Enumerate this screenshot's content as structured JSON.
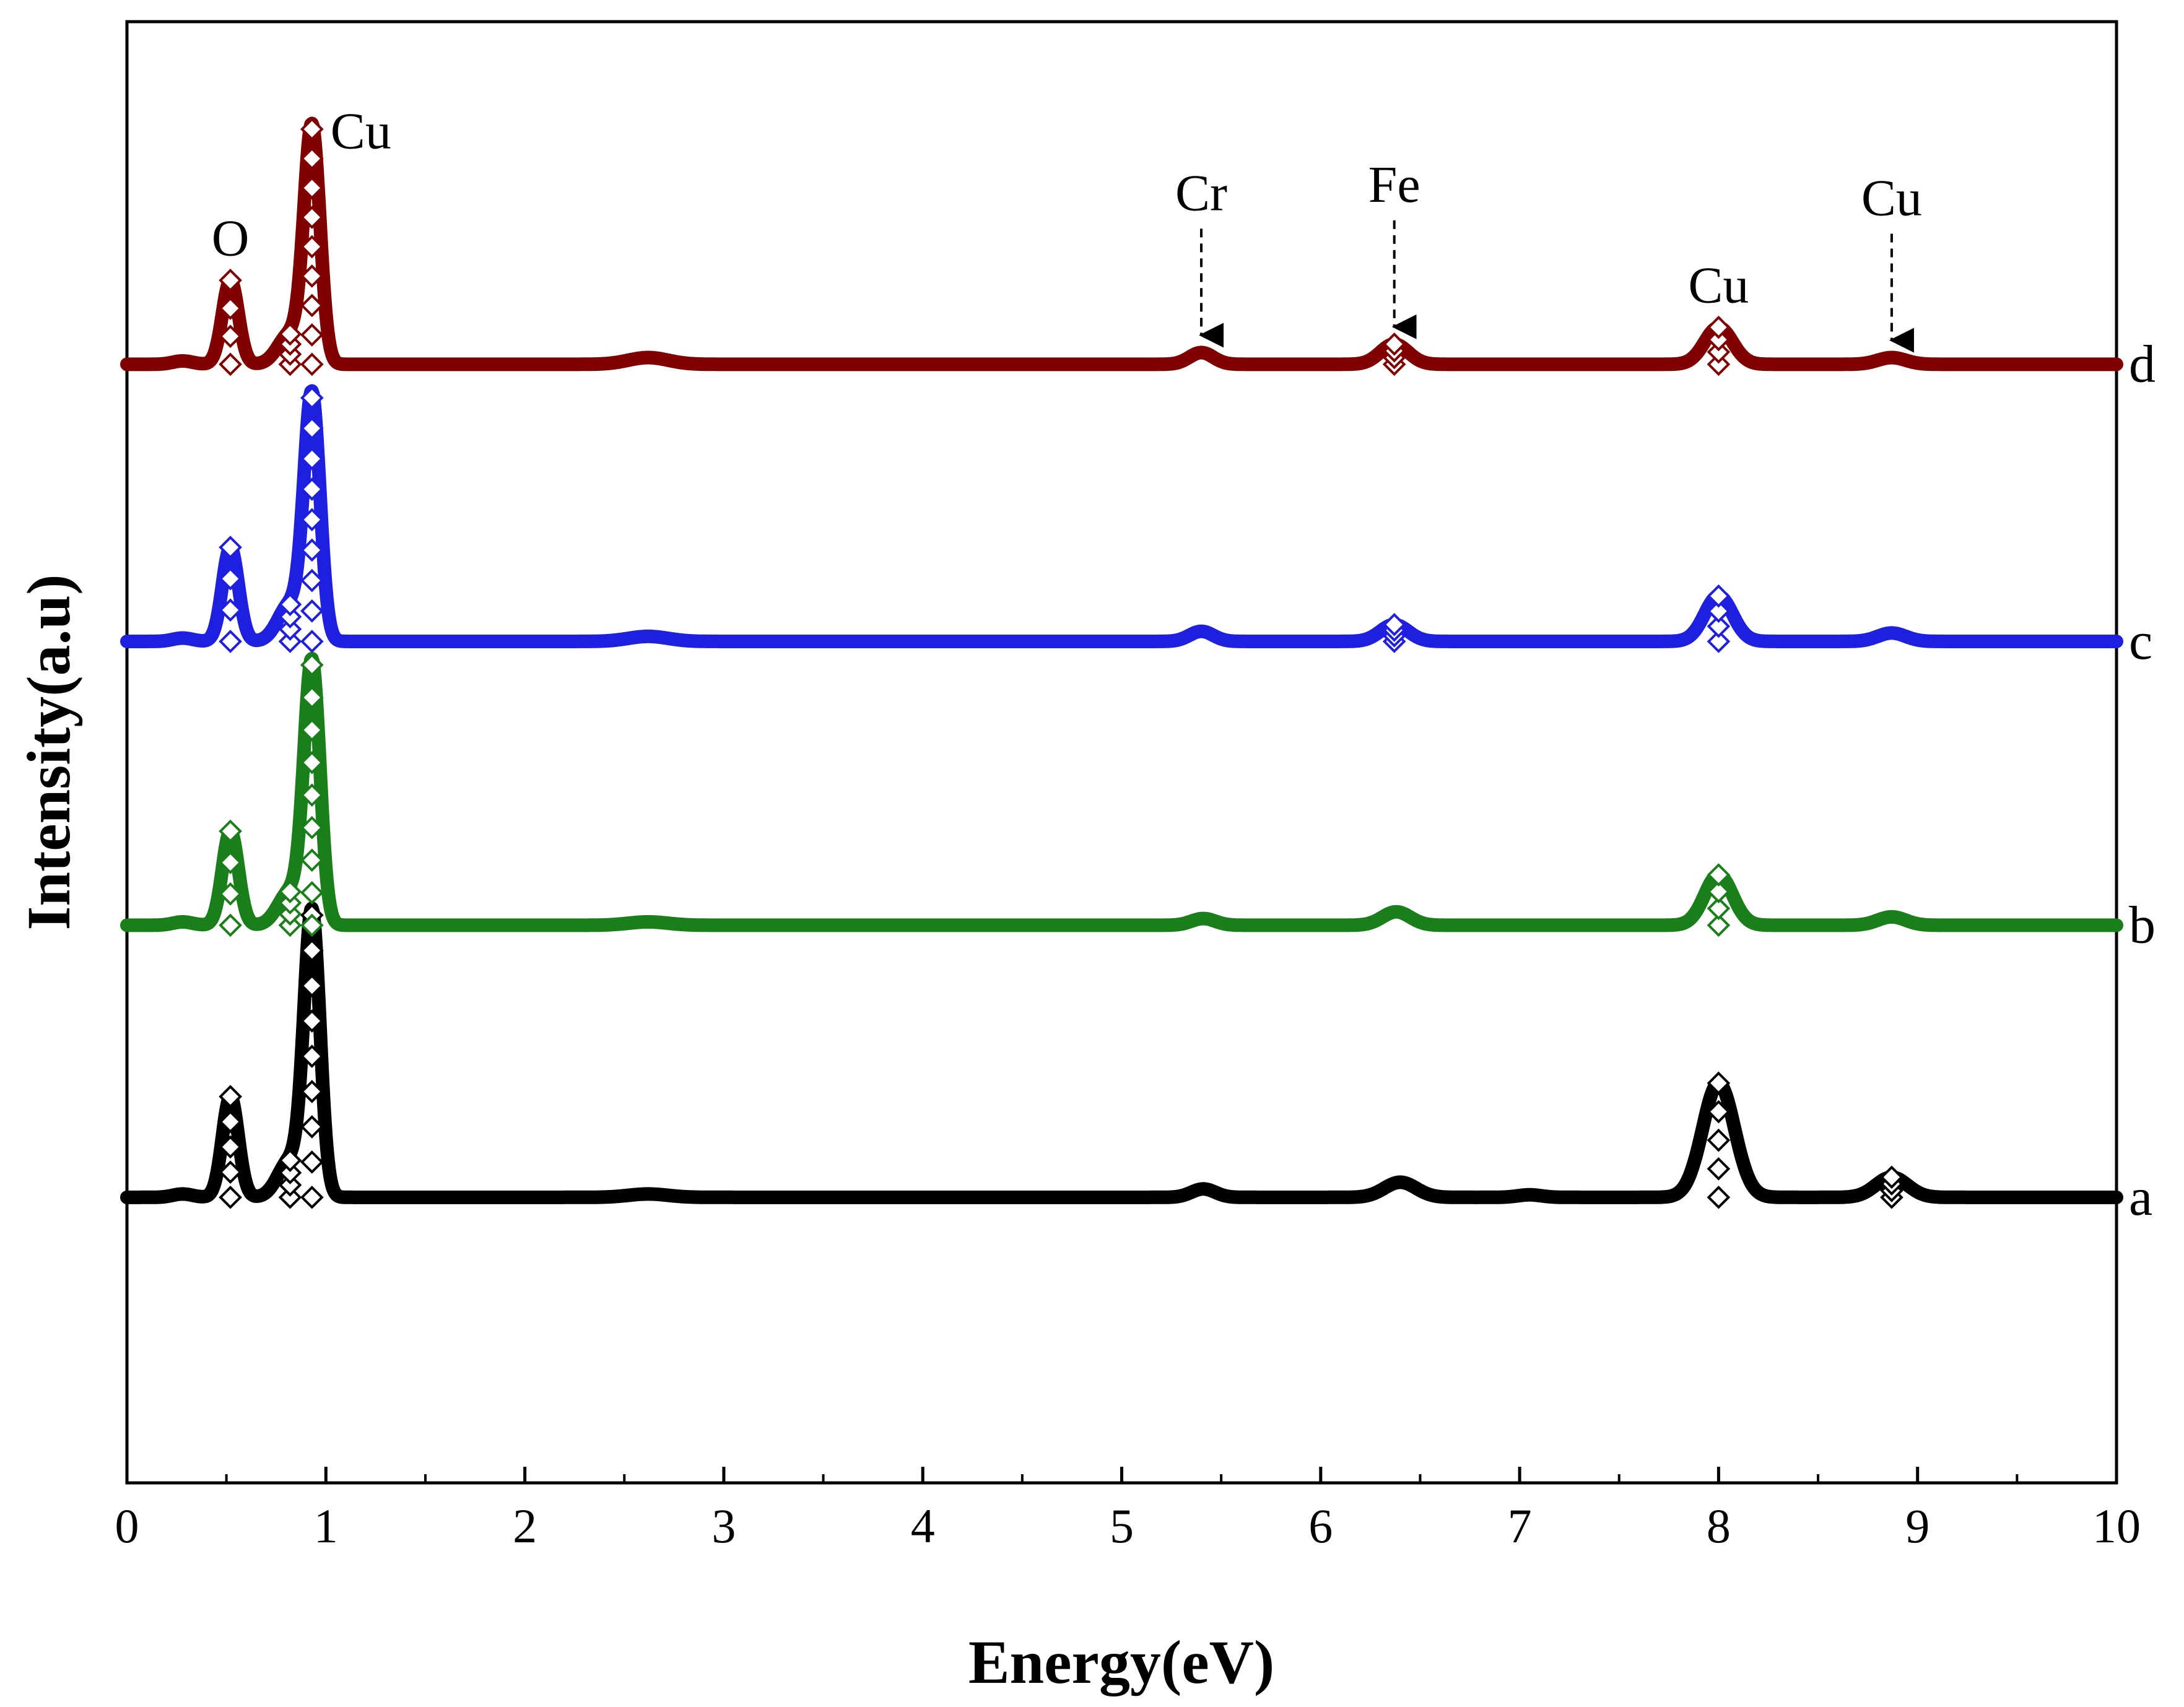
{
  "chart_data": {
    "type": "line",
    "title": "",
    "xlabel": "Energy(eV)",
    "ylabel": "Intensity(a.u)",
    "xlim": [
      0,
      10
    ],
    "x_ticks": [
      "0",
      "1",
      "2",
      "3",
      "4",
      "5",
      "6",
      "7",
      "8",
      "9",
      "10"
    ],
    "y_ticks": [],
    "grid": false,
    "marker": "diamond-open",
    "series": [
      {
        "name": "a",
        "label": "a",
        "color": "#000000",
        "baseline": 0.0,
        "peaks": [
          {
            "x": 0.28,
            "height": 0.2,
            "width": 0.05
          },
          {
            "x": 0.52,
            "height": 6.0,
            "width": 0.04
          },
          {
            "x": 0.82,
            "height": 2.2,
            "width": 0.06
          },
          {
            "x": 0.93,
            "height": 16.8,
            "width": 0.04
          },
          {
            "x": 2.62,
            "height": 0.2,
            "width": 0.1
          },
          {
            "x": 5.41,
            "height": 0.5,
            "width": 0.06
          },
          {
            "x": 6.4,
            "height": 0.9,
            "width": 0.08
          },
          {
            "x": 7.05,
            "height": 0.15,
            "width": 0.06
          },
          {
            "x": 8.0,
            "height": 6.8,
            "width": 0.08
          },
          {
            "x": 8.87,
            "height": 1.2,
            "width": 0.08
          }
        ]
      },
      {
        "name": "b",
        "label": "b",
        "color": "#1a7f1a",
        "baseline": 16.2,
        "peaks": [
          {
            "x": 0.28,
            "height": 0.2,
            "width": 0.05
          },
          {
            "x": 0.52,
            "height": 5.6,
            "width": 0.04
          },
          {
            "x": 0.82,
            "height": 2.0,
            "width": 0.06
          },
          {
            "x": 0.93,
            "height": 15.5,
            "width": 0.04
          },
          {
            "x": 2.62,
            "height": 0.2,
            "width": 0.1
          },
          {
            "x": 5.41,
            "height": 0.4,
            "width": 0.06
          },
          {
            "x": 6.38,
            "height": 0.8,
            "width": 0.07
          },
          {
            "x": 8.0,
            "height": 3.0,
            "width": 0.07
          },
          {
            "x": 8.87,
            "height": 0.5,
            "width": 0.07
          }
        ]
      },
      {
        "name": "c",
        "label": "c",
        "color": "#1f1fe0",
        "baseline": 33.1,
        "peaks": [
          {
            "x": 0.28,
            "height": 0.2,
            "width": 0.05
          },
          {
            "x": 0.52,
            "height": 5.6,
            "width": 0.04
          },
          {
            "x": 0.82,
            "height": 2.2,
            "width": 0.06
          },
          {
            "x": 0.93,
            "height": 14.5,
            "width": 0.04
          },
          {
            "x": 2.62,
            "height": 0.3,
            "width": 0.1
          },
          {
            "x": 5.4,
            "height": 0.6,
            "width": 0.06
          },
          {
            "x": 6.37,
            "height": 1.0,
            "width": 0.07
          },
          {
            "x": 8.0,
            "height": 2.7,
            "width": 0.07
          },
          {
            "x": 8.87,
            "height": 0.5,
            "width": 0.07
          }
        ]
      },
      {
        "name": "d",
        "label": "d",
        "color": "#800000",
        "baseline": 49.6,
        "peaks": [
          {
            "x": 0.28,
            "height": 0.2,
            "width": 0.05
          },
          {
            "x": 0.52,
            "height": 5.0,
            "width": 0.04
          },
          {
            "x": 0.82,
            "height": 1.8,
            "width": 0.06
          },
          {
            "x": 0.93,
            "height": 14.0,
            "width": 0.04
          },
          {
            "x": 2.62,
            "height": 0.4,
            "width": 0.1
          },
          {
            "x": 5.4,
            "height": 0.7,
            "width": 0.06
          },
          {
            "x": 6.37,
            "height": 1.2,
            "width": 0.07
          },
          {
            "x": 8.0,
            "height": 2.2,
            "width": 0.07
          },
          {
            "x": 8.87,
            "height": 0.4,
            "width": 0.07
          }
        ]
      }
    ],
    "annotations": [
      {
        "text": "Cu",
        "x": 0.93,
        "series": "d",
        "arrow": false
      },
      {
        "text": "O",
        "x": 0.52,
        "series": "d",
        "arrow": false
      },
      {
        "text": "Cr",
        "x": 5.4,
        "series": "d",
        "arrow": true
      },
      {
        "text": "Fe",
        "x": 6.37,
        "series": "d",
        "arrow": true
      },
      {
        "text": "Cu",
        "x": 8.0,
        "series": "d",
        "arrow": false
      },
      {
        "text": "Cu",
        "x": 8.87,
        "series": "d",
        "arrow": true
      }
    ]
  }
}
